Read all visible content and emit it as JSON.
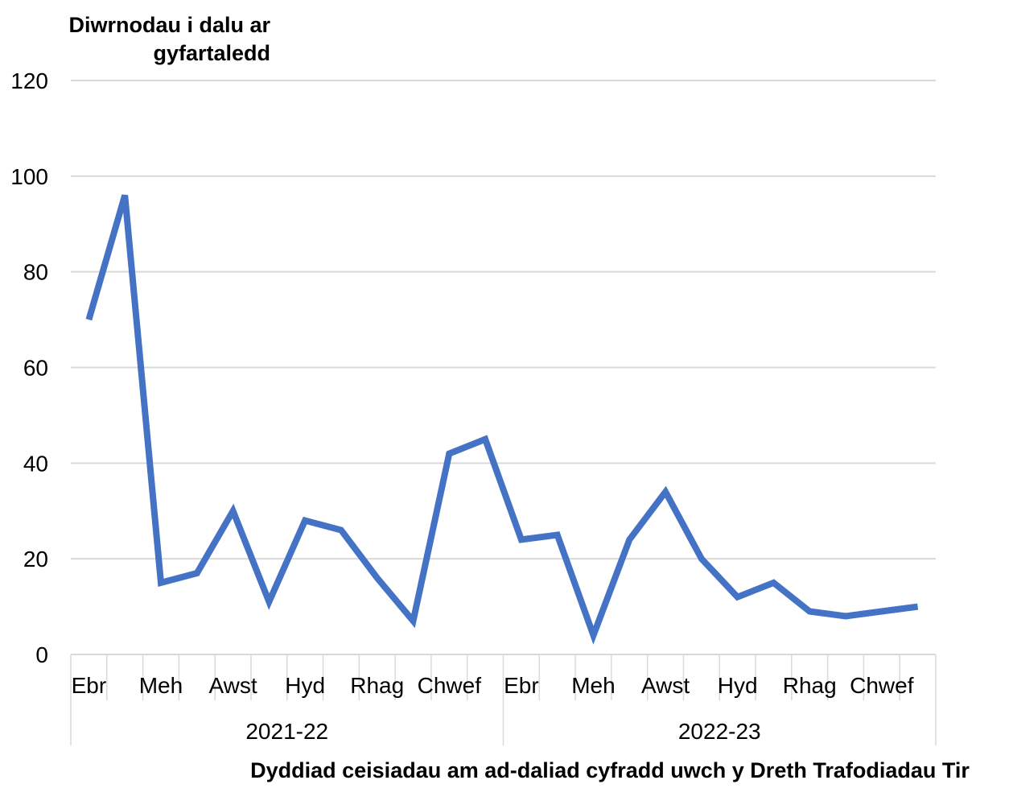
{
  "chart_data": {
    "type": "line",
    "ylabel": "Diwrnodau i dalu ar gyfartaledd",
    "xlabel": "Dyddiad ceisiadau am ad-daliad cyfradd uwch y Dreth Trafodiadau Tir",
    "ylim": [
      0,
      120
    ],
    "y_ticks": [
      "0",
      "20",
      "40",
      "60",
      "80",
      "100",
      "120"
    ],
    "grid": true,
    "legend": "none",
    "line_color": "#4472C4",
    "x_tick_labels": [
      "Ebr",
      "",
      "Meh",
      "",
      "Awst",
      "",
      "Hyd",
      "",
      "Rhag",
      "",
      "Chwef",
      "",
      "Ebr",
      "",
      "Meh",
      "",
      "Awst",
      "",
      "Hyd",
      "",
      "Rhag",
      "",
      "Chwef",
      ""
    ],
    "groups": [
      {
        "label": "2021-22",
        "start": 0,
        "count": 12
      },
      {
        "label": "2022-23",
        "start": 12,
        "count": 12
      }
    ],
    "series": [
      {
        "values": [
          70,
          96,
          15,
          17,
          30,
          11,
          28,
          26,
          16,
          7,
          42,
          45,
          24,
          25,
          4,
          24,
          34,
          20,
          12,
          15,
          9,
          8,
          9,
          10
        ]
      }
    ]
  }
}
